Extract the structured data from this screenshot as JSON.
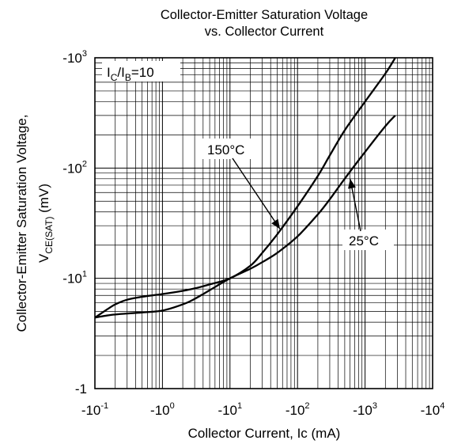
{
  "chart_data": {
    "type": "line",
    "title": "Collector-Emitter Saturation Voltage",
    "subtitle": "vs. Collector Current",
    "xlabel": "Collector Current, Ic (mA)",
    "ylabel_line1": "Collector-Emitter Saturation Voltage,",
    "ylabel_line2": {
      "prefix": "V",
      "sub": "CE(SAT)",
      "suffix": " (mV)"
    },
    "x_scale": "log",
    "y_scale": "log",
    "xlim": [
      0.1,
      10000
    ],
    "ylim": [
      1,
      1000
    ],
    "grid": true,
    "x_ticks": [
      {
        "value": 0.1,
        "base": "-10",
        "exp": "-1"
      },
      {
        "value": 1,
        "base": "-10",
        "exp": "0"
      },
      {
        "value": 10,
        "base": "-10",
        "exp": "1"
      },
      {
        "value": 100,
        "base": "-10",
        "exp": "2"
      },
      {
        "value": 1000,
        "base": "-10",
        "exp": "3"
      },
      {
        "value": 10000,
        "base": "-10",
        "exp": "4"
      }
    ],
    "y_ticks": [
      {
        "value": 1,
        "base": "-1",
        "exp": ""
      },
      {
        "value": 10,
        "base": "-10",
        "exp": "1"
      },
      {
        "value": 100,
        "base": "-10",
        "exp": "2"
      },
      {
        "value": 1000,
        "base": "-10",
        "exp": "3"
      }
    ],
    "condition": {
      "I1": "I",
      "sub1": "C",
      "slash": "/I",
      "sub2": "B",
      "value": "=10"
    },
    "series": [
      {
        "name": "150°C",
        "x": [
          0.1,
          0.15,
          0.2,
          0.3,
          0.5,
          1,
          2,
          3,
          5,
          10,
          20,
          30,
          50,
          100,
          200,
          300,
          500,
          1000,
          2000,
          2800
        ],
        "y": [
          4.4,
          5.2,
          5.8,
          6.4,
          6.8,
          7.2,
          7.7,
          8.1,
          8.8,
          10,
          13,
          17,
          25,
          45,
          85,
          130,
          220,
          400,
          720,
          1000
        ]
      },
      {
        "name": "25°C",
        "x": [
          0.1,
          0.15,
          0.2,
          0.3,
          0.5,
          1,
          2,
          3,
          5,
          10,
          20,
          30,
          50,
          100,
          200,
          300,
          500,
          1000,
          2000,
          2800
        ],
        "y": [
          4.4,
          4.6,
          4.7,
          4.8,
          4.9,
          5.1,
          5.8,
          6.5,
          7.8,
          10,
          12.2,
          14,
          17,
          24,
          38,
          52,
          80,
          140,
          240,
          300
        ]
      }
    ],
    "annotations": [
      {
        "text": "150°C",
        "arrow_to": [
          55,
          28
        ]
      },
      {
        "text": "25°C",
        "arrow_to": [
          600,
          80
        ]
      }
    ]
  }
}
